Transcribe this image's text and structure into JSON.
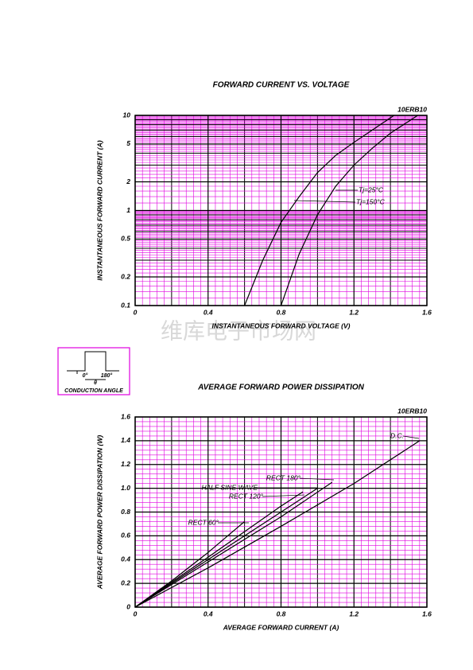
{
  "chart_data": [
    {
      "type": "line",
      "title": "FORWARD CURRENT VS. VOLTAGE",
      "annotation": "10ERB10",
      "x_label": "INSTANTANEOUS FORWARD VOLTAGE (V)",
      "y_label": "INSTANTANEOUS FORWARD CURRENT (A)",
      "log_y": true,
      "grid": true,
      "grid_color": "#e000e0",
      "xlim": [
        0,
        1.6
      ],
      "xticks": [
        0,
        0.4,
        0.8,
        1.2,
        1.6
      ],
      "ylim": [
        0.1,
        10
      ],
      "yticks": [
        0.1,
        0.2,
        0.5,
        1,
        2,
        5,
        10
      ],
      "series": [
        {
          "name": "Tj=25°C",
          "color": "#000000",
          "x": [
            0.8,
            0.9,
            1.0,
            1.1,
            1.2,
            1.3,
            1.4,
            1.55
          ],
          "values": [
            0.1,
            0.35,
            0.9,
            1.8,
            3,
            4.5,
            6.5,
            10
          ]
        },
        {
          "name": "Tj=150°C",
          "color": "#000000",
          "x": [
            0.6,
            0.7,
            0.8,
            0.9,
            1.0,
            1.1,
            1.2,
            1.3,
            1.42
          ],
          "values": [
            0.1,
            0.3,
            0.75,
            1.4,
            2.5,
            3.8,
            5.2,
            7,
            10
          ]
        }
      ]
    },
    {
      "type": "line",
      "title": "AVERAGE FORWARD POWER DISSIPATION",
      "annotation": "10ERB10",
      "x_label": "AVERAGE FORWARD CURRENT (A)",
      "y_label": "AVERAGE FORWARD POWER DISSIPATION (W)",
      "log_y": false,
      "grid": true,
      "grid_color": "#e000e0",
      "xlim": [
        0,
        1.6
      ],
      "xticks": [
        0,
        0.4,
        0.8,
        1.2,
        1.6
      ],
      "ylim": [
        0,
        1.6
      ],
      "yticks": [
        0,
        0.2,
        0.4,
        0.6,
        0.8,
        {
          "value": 1,
          "label": "1.0"
        },
        1.2,
        1.4,
        1.6
      ],
      "series": [
        {
          "name": "D.C.",
          "color": "#000000",
          "x": [
            0,
            0.4,
            0.8,
            1.2,
            1.56
          ],
          "values": [
            0,
            0.33,
            0.68,
            1.04,
            1.4
          ]
        },
        {
          "name": "RECT 180°",
          "color": "#000000",
          "x": [
            0,
            0.4,
            0.8,
            1.08
          ],
          "values": [
            0,
            0.38,
            0.76,
            1.05
          ]
        },
        {
          "name": "HALF SINE WAVE",
          "color": "#000000",
          "x": [
            0,
            0.4,
            0.8,
            1.0
          ],
          "values": [
            0,
            0.4,
            0.8,
            1.0
          ]
        },
        {
          "name": "RECT 120°",
          "color": "#000000",
          "x": [
            0,
            0.4,
            0.8,
            0.92
          ],
          "values": [
            0,
            0.42,
            0.85,
            0.97
          ]
        },
        {
          "name": "RECT 60°",
          "color": "#000000",
          "x": [
            0,
            0.2,
            0.4,
            0.6
          ],
          "values": [
            0,
            0.22,
            0.46,
            0.72
          ]
        }
      ]
    }
  ],
  "inset": {
    "start": "0°",
    "end": "180°",
    "angle": "θ",
    "caption": "CONDUCTION ANGLE"
  },
  "watermark": "维库电子市场网"
}
